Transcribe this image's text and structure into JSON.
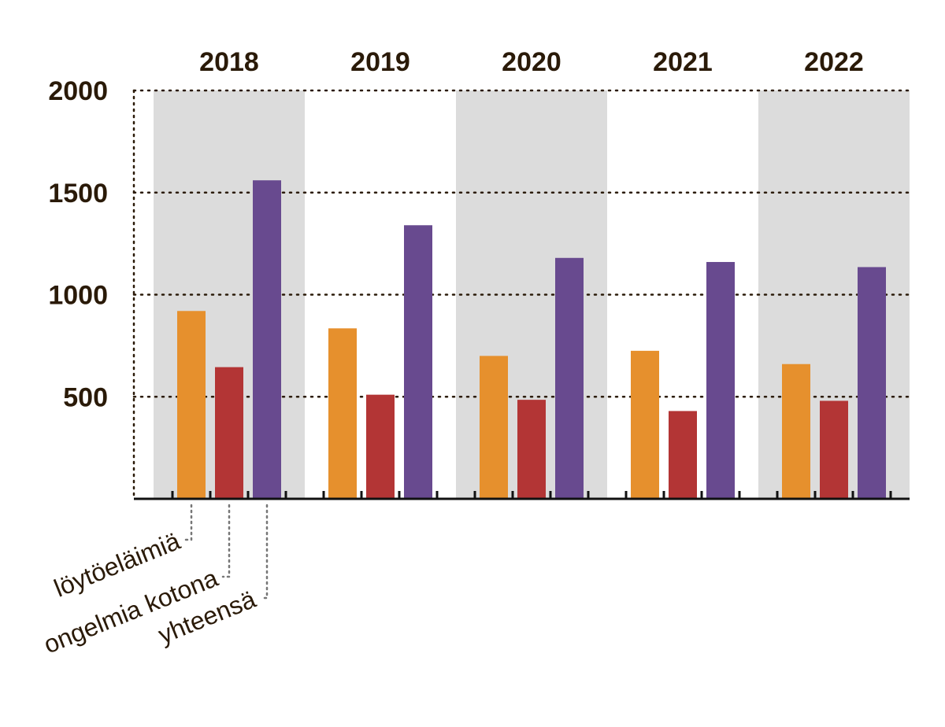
{
  "chart_data": {
    "type": "bar",
    "categories": [
      "2018",
      "2019",
      "2020",
      "2021",
      "2022"
    ],
    "series": [
      {
        "name": "löytöeläimiä",
        "color": "#e6902d",
        "values": [
          920,
          835,
          700,
          725,
          660
        ]
      },
      {
        "name": "ongelmia kotona",
        "color": "#b33535",
        "values": [
          645,
          510,
          485,
          430,
          480
        ]
      },
      {
        "name": "yhteensä",
        "color": "#684a8f",
        "values": [
          1560,
          1340,
          1180,
          1160,
          1135
        ]
      }
    ],
    "yticks": [
      500,
      1000,
      1500,
      2000
    ],
    "ylim": [
      0,
      2000
    ],
    "grid": true,
    "band_color": "#dcdcdc",
    "title": "",
    "xlabel": "",
    "ylabel": ""
  }
}
